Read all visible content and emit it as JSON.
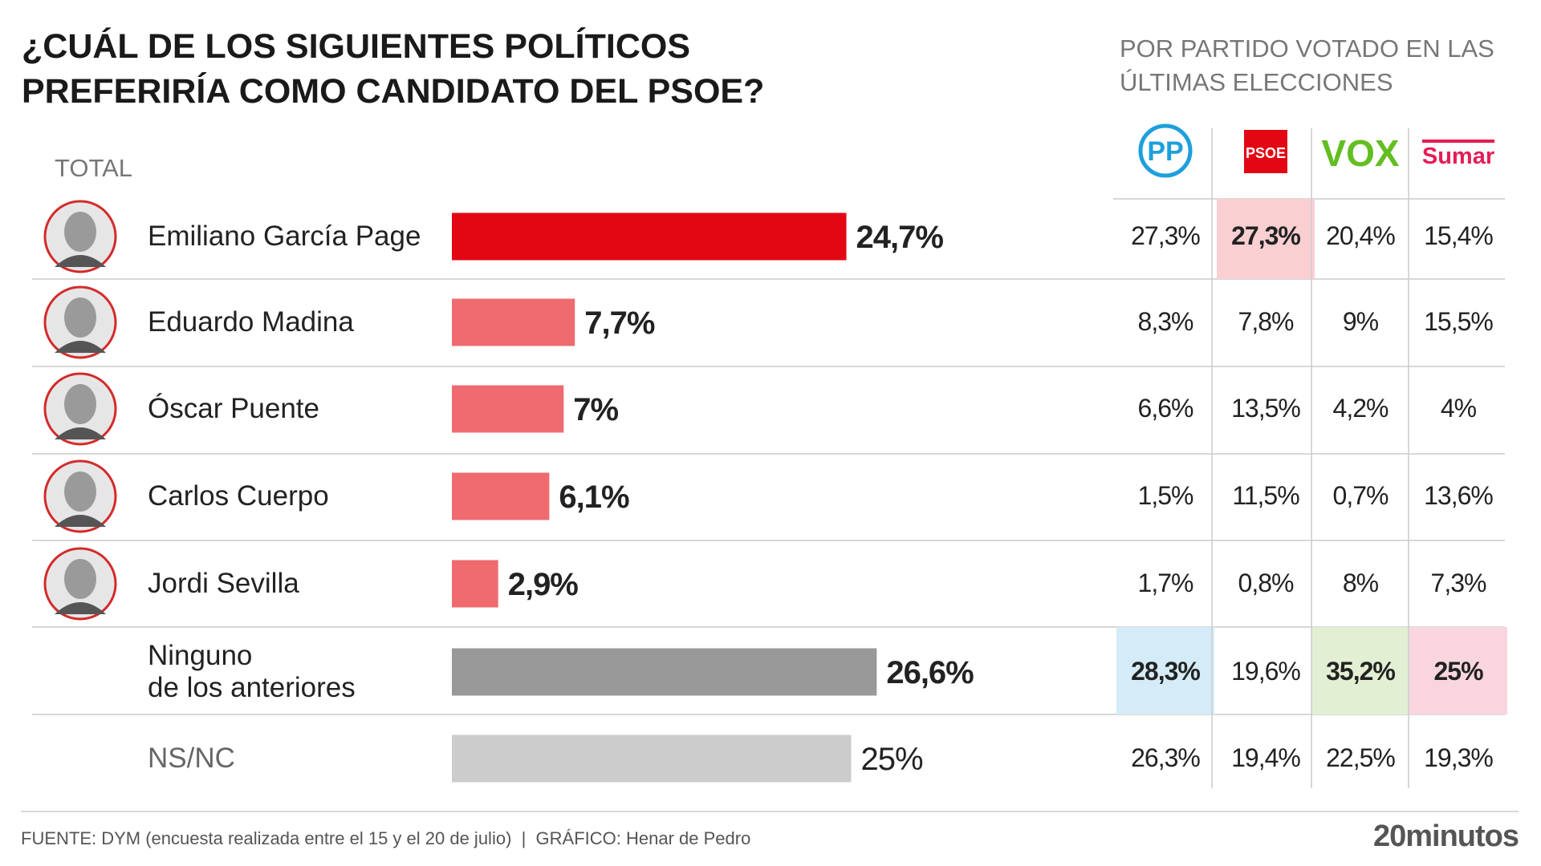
{
  "chart_data": {
    "type": "bar",
    "title": "¿CUÁL DE LOS SIGUIENTES POLÍTICOS PREFERIRÍA COMO CANDIDATO DEL PSOE?",
    "subtitle": "POR PARTIDO VOTADO EN LAS ÚLTIMAS ELECCIONES",
    "total_label": "TOTAL",
    "categories": [
      "Emiliano García Page",
      "Eduardo Madina",
      "Óscar Puente",
      "Carlos Cuerpo",
      "Jordi Sevilla",
      "Ninguno\nde los anteriores",
      "NS/NC"
    ],
    "values": [
      24.7,
      7.7,
      7,
      6.1,
      2.9,
      26.6,
      25
    ],
    "value_labels": [
      "24,7%",
      "7,7%",
      "7%",
      "6,1%",
      "2,9%",
      "26,6%",
      "25%"
    ],
    "colors": [
      "#e30613",
      "#ef6b70",
      "#ef6b70",
      "#ef6b70",
      "#ef6b70",
      "#999999",
      "#cccccc"
    ],
    "source": "FUENTE: DYM (encuesta realizada entre el 15 y el 20 de julio)  |  GRÁFICO: Henar de Pedro",
    "brand": "20minutos"
  },
  "party_table": {
    "columns": [
      "PP",
      "PSOE",
      "VOX",
      "Sumar"
    ],
    "rows": [
      [
        "27,3%",
        "27,3%",
        "20,4%",
        "15,4%"
      ],
      [
        "8,3%",
        "7,8%",
        "9%",
        "15,5%"
      ],
      [
        "6,6%",
        "13,5%",
        "4,2%",
        "4%"
      ],
      [
        "1,5%",
        "11,5%",
        "0,7%",
        "13,6%"
      ],
      [
        "1,7%",
        "0,8%",
        "8%",
        "7,3%"
      ],
      [
        "28,3%",
        "19,6%",
        "35,2%",
        "25%"
      ],
      [
        "26,3%",
        "19,4%",
        "22,5%",
        "19,3%"
      ]
    ]
  }
}
